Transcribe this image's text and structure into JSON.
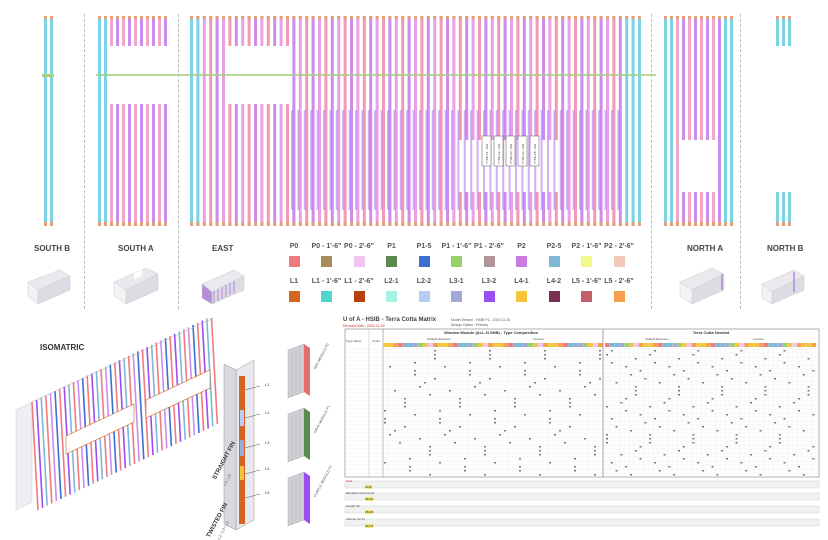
{
  "elevations": {
    "sections": [
      {
        "name": "SOUTH B"
      },
      {
        "name": "SOUTH A"
      },
      {
        "name": "EAST"
      },
      {
        "name": "NORTH A"
      },
      {
        "name": "NORTH B"
      }
    ],
    "callouts": [
      "TYPE-A1 - 001",
      "TYPE-A2 - 001",
      "TYPE-A3 - 001",
      "TYPE-A4 - 001",
      "TYPE-A5 - 001"
    ]
  },
  "legend": {
    "row1": [
      {
        "label": "P0",
        "color": "#f07a7e"
      },
      {
        "label": "P0 - 1'-6\"",
        "color": "#a88d5a"
      },
      {
        "label": "P0 - 2'-6\"",
        "color": "#f2c4f2"
      },
      {
        "label": "P1",
        "color": "#5c8a4e"
      },
      {
        "label": "P1-5",
        "color": "#3b6fd1"
      },
      {
        "label": "P1 - 1'-6\"",
        "color": "#9ad06a"
      },
      {
        "label": "P1 - 2'-6\"",
        "color": "#b0959a"
      },
      {
        "label": "P2",
        "color": "#c97de0"
      },
      {
        "label": "P2-5",
        "color": "#7eb8d6"
      },
      {
        "label": "P2 - 1'-6\"",
        "color": "#f4f98c"
      },
      {
        "label": "P2 - 2'-6\"",
        "color": "#f5c9b9"
      }
    ],
    "row2": [
      {
        "label": "L1",
        "color": "#d4651f"
      },
      {
        "label": "L1 - 1'-6\"",
        "color": "#4ed6cc"
      },
      {
        "label": "L1 - 2'-6\"",
        "color": "#b8400f"
      },
      {
        "label": "L2-1",
        "color": "#a6f2e4"
      },
      {
        "label": "L2-2",
        "color": "#b7cdf4"
      },
      {
        "label": "L3-1",
        "color": "#a2a9d6"
      },
      {
        "label": "L3-2",
        "color": "#9a4df0"
      },
      {
        "label": "L4-1",
        "color": "#f5c63d"
      },
      {
        "label": "L4-2",
        "color": "#7a2e52"
      },
      {
        "label": "L5 - 1'-6\"",
        "color": "#c2606a"
      },
      {
        "label": "L5 - 2'-6\"",
        "color": "#f5a14b"
      }
    ]
  },
  "isometric": {
    "title": "ISOMATRIC"
  },
  "fin": {
    "straight_title": "STRAIGHT FIN",
    "straight_sub": "L1 / L5",
    "twisted_title": "TWISTED FIN",
    "twisted_sub": "L2 / L3 / L4",
    "labels": [
      "L1",
      "L2",
      "L3",
      "L4",
      "L5"
    ]
  },
  "samples": [
    {
      "caption": "RED MODULE P0"
    },
    {
      "caption": "GRAY MODULE P1"
    },
    {
      "caption": "PURPLE MODULE P2"
    }
  ],
  "matrix": {
    "title": "U of A - HSIB - Terra Cotta Matrix",
    "meta1": "Model Version : HSIB P1 - 2020-11-30",
    "meta2": "Design Option : Primary",
    "revision": "Revised Date : 2022-11-09",
    "header_left": "Window Module (ALL-H-SHB) - Type Composition",
    "header_right": "Terra Cotta Needed",
    "col_type": "Type Name",
    "col_count": "Count",
    "sub_left_a": "Straight Extrusion",
    "sub_left_b": "Louvers",
    "sub_right_a": "Straight Extrusion",
    "sub_right_b": "Louvers",
    "summary_labels": [
      "Total",
      "Elevation Area (sq ft)",
      "Length (ft)",
      "Volume (cu ft)"
    ],
    "summary_highlight": [
      "2046",
      "38426",
      "38426",
      "22176"
    ]
  }
}
